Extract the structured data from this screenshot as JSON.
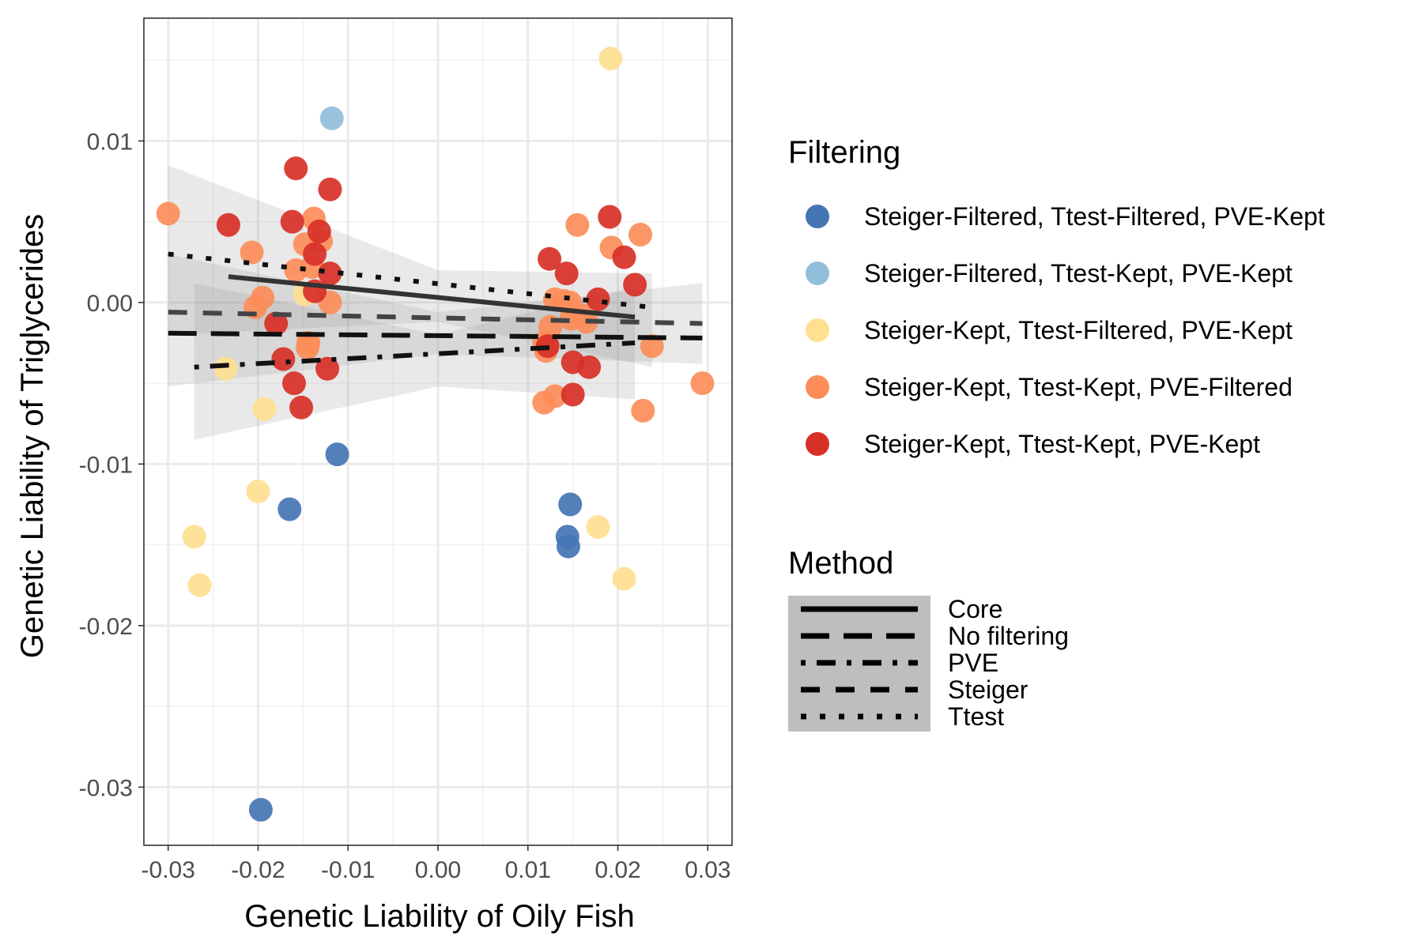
{
  "chart_data": {
    "type": "scatter",
    "xlabel": "Genetic Liability of Oily Fish",
    "ylabel": "Genetic Liability of Triglycerides",
    "xlim": [
      -0.0327,
      0.0327
    ],
    "ylim": [
      -0.0336,
      0.0176
    ],
    "x_ticks": [
      -0.03,
      -0.02,
      -0.01,
      0.0,
      0.01,
      0.02,
      0.03
    ],
    "x_tick_labels": [
      "-0.03",
      "-0.02",
      "-0.01",
      "0.00",
      "0.01",
      "0.02",
      "0.03"
    ],
    "y_ticks": [
      -0.03,
      -0.02,
      -0.01,
      0.0,
      0.01
    ],
    "y_tick_labels": [
      "-0.03",
      "-0.02",
      "-0.01",
      "0.00",
      "0.01"
    ],
    "grid": true,
    "legend_position": "right",
    "filtering_legend": {
      "title": "Filtering",
      "entries": [
        {
          "label": "Steiger-Filtered, Ttest-Filtered, PVE-Kept",
          "color": "#4575b4"
        },
        {
          "label": "Steiger-Filtered, Ttest-Kept, PVE-Kept",
          "color": "#91bfdb"
        },
        {
          "label": "Steiger-Kept, Ttest-Filtered, PVE-Kept",
          "color": "#fee090"
        },
        {
          "label": "Steiger-Kept, Ttest-Kept, PVE-Filtered",
          "color": "#fc8d59"
        },
        {
          "label": "Steiger-Kept, Ttest-Kept, PVE-Kept",
          "color": "#d73027"
        }
      ]
    },
    "method_legend": {
      "title": "Method",
      "entries": [
        {
          "label": "Core",
          "dash": "solid"
        },
        {
          "label": "No filtering",
          "dash": "longdash"
        },
        {
          "label": "PVE",
          "dash": "dotdash"
        },
        {
          "label": "Steiger",
          "dash": "dashed"
        },
        {
          "label": "Ttest",
          "dash": "dotted"
        }
      ]
    },
    "series": [
      {
        "group": 0,
        "points": [
          [
            -0.0197,
            -0.0314
          ],
          [
            -0.0165,
            -0.0128
          ],
          [
            -0.0112,
            -0.0094
          ],
          [
            0.0147,
            -0.0125
          ],
          [
            0.0144,
            -0.0145
          ],
          [
            0.0145,
            -0.0151
          ]
        ]
      },
      {
        "group": 1,
        "points": [
          [
            -0.0118,
            0.0114
          ]
        ]
      },
      {
        "group": 2,
        "points": [
          [
            0.0192,
            0.0151
          ],
          [
            -0.0236,
            -0.0041
          ],
          [
            -0.0193,
            -0.0066
          ],
          [
            -0.02,
            -0.0117
          ],
          [
            -0.0271,
            -0.0145
          ],
          [
            -0.0265,
            -0.0175
          ],
          [
            0.0178,
            -0.0139
          ],
          [
            0.0207,
            -0.0171
          ],
          [
            -0.0148,
            0.0005
          ]
        ]
      },
      {
        "group": 3,
        "points": [
          [
            -0.03,
            0.0055
          ],
          [
            -0.0207,
            0.0031
          ],
          [
            -0.0195,
            0.0003
          ],
          [
            -0.0203,
            -0.0003
          ],
          [
            -0.0138,
            0.0052
          ],
          [
            -0.0148,
            0.0036
          ],
          [
            -0.013,
            0.0038
          ],
          [
            -0.0158,
            0.002
          ],
          [
            -0.014,
            0.0022
          ],
          [
            -0.012,
            0.0
          ],
          [
            -0.0144,
            -0.0025
          ],
          [
            -0.0145,
            -0.0028
          ],
          [
            0.0155,
            0.0048
          ],
          [
            0.0193,
            0.0034
          ],
          [
            0.0225,
            0.0042
          ],
          [
            0.013,
            0.0002
          ],
          [
            0.014,
            0.0001
          ],
          [
            0.0147,
            0.0
          ],
          [
            0.0148,
            -0.001
          ],
          [
            0.016,
            -0.0008
          ],
          [
            0.0165,
            -0.0012
          ],
          [
            0.0125,
            -0.0015
          ],
          [
            0.012,
            -0.003
          ],
          [
            0.0118,
            -0.0025
          ],
          [
            0.0238,
            -0.0027
          ],
          [
            0.0118,
            -0.0062
          ],
          [
            0.013,
            -0.0058
          ],
          [
            0.0228,
            -0.0067
          ],
          [
            0.0294,
            -0.005
          ]
        ]
      },
      {
        "group": 4,
        "points": [
          [
            -0.0158,
            0.0083
          ],
          [
            -0.012,
            0.007
          ],
          [
            -0.0233,
            0.0048
          ],
          [
            -0.0162,
            0.005
          ],
          [
            -0.0132,
            0.0044
          ],
          [
            -0.0137,
            0.003
          ],
          [
            -0.012,
            0.0018
          ],
          [
            -0.0137,
            0.0007
          ],
          [
            -0.018,
            -0.0013
          ],
          [
            -0.0172,
            -0.0035
          ],
          [
            -0.016,
            -0.005
          ],
          [
            -0.0152,
            -0.0065
          ],
          [
            -0.0123,
            -0.0041
          ],
          [
            0.0191,
            0.0053
          ],
          [
            0.0124,
            0.0027
          ],
          [
            0.0143,
            0.0018
          ],
          [
            0.0207,
            0.0028
          ],
          [
            0.0219,
            0.0011
          ],
          [
            0.0178,
            0.0002
          ],
          [
            0.0122,
            -0.0027
          ],
          [
            0.015,
            -0.0037
          ],
          [
            0.0168,
            -0.004
          ],
          [
            0.015,
            -0.0057
          ]
        ]
      }
    ],
    "regression_lines": [
      {
        "method": "Core",
        "x": [
          -0.0233,
          0.0219
        ],
        "y": [
          0.0016,
          -0.0009
        ]
      },
      {
        "method": "No filtering",
        "x": [
          -0.03,
          0.0294
        ],
        "y": [
          -0.0019,
          -0.0022
        ]
      },
      {
        "method": "PVE",
        "x": [
          -0.0271,
          0.0219
        ],
        "y": [
          -0.004,
          -0.0025
        ]
      },
      {
        "method": "Steiger",
        "x": [
          -0.03,
          0.0294
        ],
        "y": [
          -0.0006,
          -0.0013
        ]
      },
      {
        "method": "Ttest",
        "x": [
          -0.03,
          0.0238
        ],
        "y": [
          0.003,
          -0.0003
        ]
      }
    ],
    "confidence_bands": [
      {
        "method": "No filtering",
        "x": [
          -0.03,
          0.0,
          0.0294
        ],
        "lower": [
          -0.0052,
          -0.0032,
          -0.0038
        ],
        "upper": [
          0.003,
          -0.0006,
          0.0012
        ]
      },
      {
        "method": "PVE",
        "x": [
          -0.0271,
          0.0,
          0.0219
        ],
        "lower": [
          -0.0085,
          -0.0052,
          -0.006
        ],
        "upper": [
          0.0012,
          -0.002,
          0.001
        ]
      },
      {
        "method": "Ttest",
        "x": [
          -0.03,
          0.0,
          0.0238
        ],
        "lower": [
          -0.002,
          -0.0012,
          -0.004
        ],
        "upper": [
          0.0085,
          0.002,
          0.0018
        ]
      }
    ]
  }
}
